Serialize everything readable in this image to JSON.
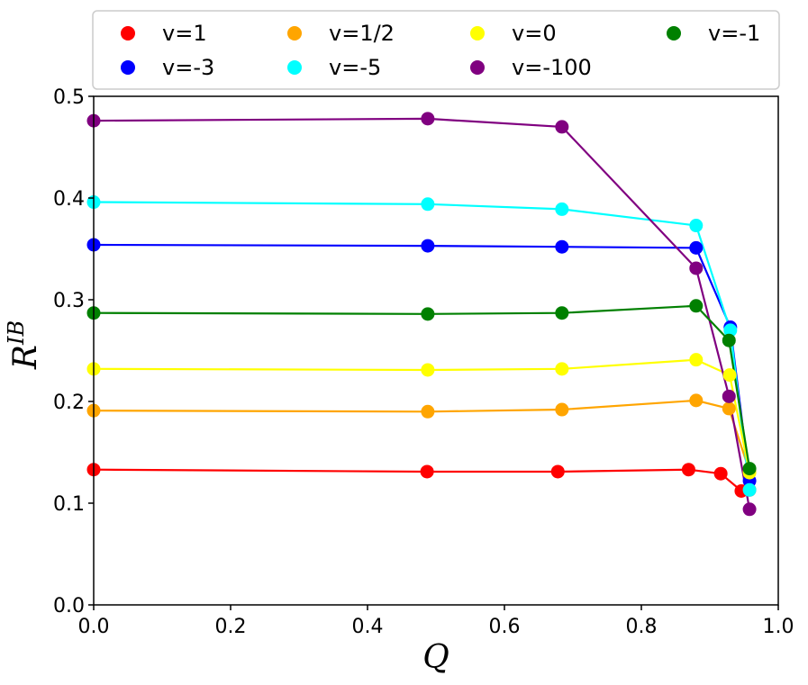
{
  "chart_data": {
    "type": "line",
    "title": "",
    "xlabel": "Q",
    "ylabel_base": "R",
    "ylabel_sup": "IB",
    "xlim": [
      0.0,
      1.0
    ],
    "ylim": [
      0.0,
      0.5
    ],
    "xticks": [
      "0.0",
      "0.2",
      "0.4",
      "0.6",
      "0.8",
      "1.0"
    ],
    "yticks": [
      "0.0",
      "0.1",
      "0.2",
      "0.3",
      "0.4",
      "0.5"
    ],
    "grid": false,
    "legend_position": "top",
    "series": [
      {
        "name": "v=1",
        "color": "#ff0000",
        "x": [
          0.0,
          0.487,
          0.678,
          0.869,
          0.916,
          0.946,
          0.958
        ],
        "y": [
          0.133,
          0.131,
          0.131,
          0.133,
          0.129,
          0.112,
          0.113
        ]
      },
      {
        "name": "v=-3",
        "color": "#0000ff",
        "x": [
          0.0,
          0.488,
          0.684,
          0.88,
          0.93,
          0.958
        ],
        "y": [
          0.354,
          0.353,
          0.352,
          0.351,
          0.273,
          0.122
        ]
      },
      {
        "name": "v=1/2",
        "color": "#ffa500",
        "x": [
          0.0,
          0.488,
          0.684,
          0.88,
          0.928,
          0.958
        ],
        "y": [
          0.191,
          0.19,
          0.192,
          0.201,
          0.193,
          0.131
        ]
      },
      {
        "name": "v=-5",
        "color": "#00ffff",
        "x": [
          0.0,
          0.488,
          0.684,
          0.88,
          0.93,
          0.958
        ],
        "y": [
          0.396,
          0.394,
          0.389,
          0.373,
          0.27,
          0.113
        ]
      },
      {
        "name": "v=0",
        "color": "#ffff00",
        "x": [
          0.0,
          0.488,
          0.684,
          0.88,
          0.929,
          0.958
        ],
        "y": [
          0.232,
          0.231,
          0.232,
          0.241,
          0.226,
          0.13
        ]
      },
      {
        "name": "v=-100",
        "color": "#800080",
        "x": [
          0.0,
          0.488,
          0.684,
          0.88,
          0.928,
          0.958
        ],
        "y": [
          0.476,
          0.478,
          0.47,
          0.331,
          0.205,
          0.094
        ]
      },
      {
        "name": "v=-1",
        "color": "#008000",
        "x": [
          0.0,
          0.488,
          0.684,
          0.88,
          0.928,
          0.958
        ],
        "y": [
          0.287,
          0.286,
          0.287,
          0.294,
          0.26,
          0.134
        ]
      }
    ]
  }
}
